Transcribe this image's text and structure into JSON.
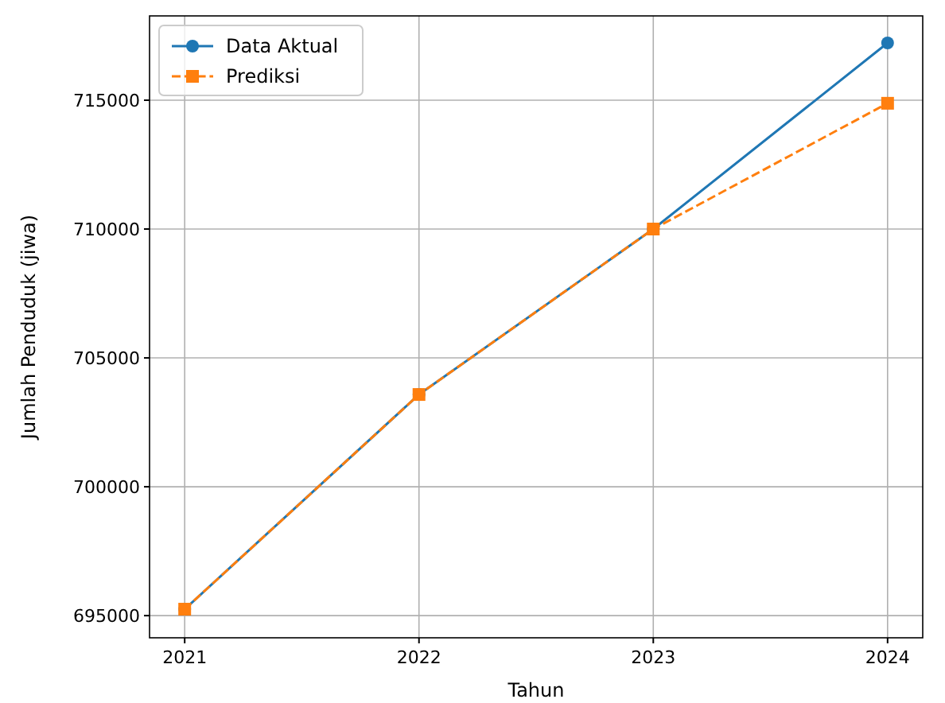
{
  "chart_data": {
    "type": "line",
    "xlabel": "Tahun",
    "ylabel": "Jumlah Penduduk (jiwa)",
    "x": [
      2021,
      2022,
      2023,
      2024
    ],
    "series": [
      {
        "name": "Data Aktual",
        "color": "#1f77b4",
        "values": [
          695250,
          703580,
          710000,
          717220
        ],
        "marker": "circle",
        "line_style": "solid"
      },
      {
        "name": "Prediksi",
        "color": "#ff7f0e",
        "values": [
          695250,
          703580,
          710000,
          714880
        ],
        "marker": "square",
        "line_style": "dashed"
      }
    ],
    "xlim": [
      2020.85,
      2024.15
    ],
    "xticks": [
      2021,
      2022,
      2023,
      2024
    ],
    "ylim": [
      694140,
      718270
    ],
    "yticks": [
      695000,
      700000,
      705000,
      710000,
      715000
    ],
    "grid": true,
    "legend": "top left"
  }
}
